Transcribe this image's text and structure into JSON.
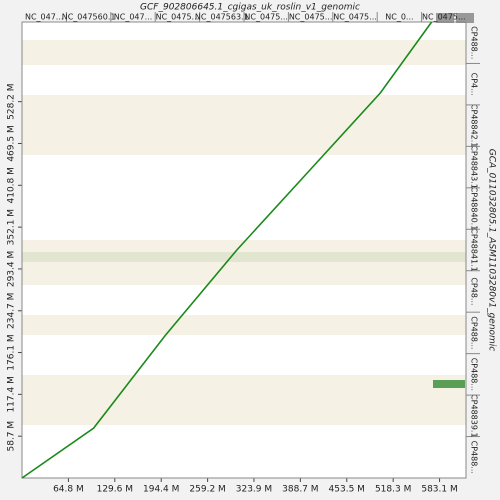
{
  "chart_data": {
    "type": "line",
    "title": "GCF_902806645.1_cgigas_uk_roslin_v1_genomic",
    "y_title": "GCA_011032805.1_ASM1103280v1_genomic",
    "top_labels": [
      "NC_047...",
      "NC_047560.1",
      "NC_047...",
      "NC_0475...",
      "NC_047563.1",
      "NC_0475...",
      "NC_0475...",
      "NC_0475...",
      "NC_0...",
      "NC_0475..."
    ],
    "right_labels": [
      "CP488...",
      "CP48839.1",
      "CP488...",
      "CP488...",
      "CP48...",
      "CP48841.1",
      "CP48840.1",
      "CP48843.1",
      "CP48842.1",
      "CP4...",
      "CP488..."
    ],
    "xlim": [
      0,
      620
    ],
    "ylim": [
      0,
      640
    ],
    "xticks": [
      {
        "value": 64.8,
        "label": "64.8 M"
      },
      {
        "value": 129.6,
        "label": "129.6 M"
      },
      {
        "value": 194.4,
        "label": "194.4 M"
      },
      {
        "value": 259.2,
        "label": "259.2 M"
      },
      {
        "value": 323.9,
        "label": "323.9 M"
      },
      {
        "value": 388.7,
        "label": "388.7 M"
      },
      {
        "value": 453.5,
        "label": "453.5 M"
      },
      {
        "value": 518.3,
        "label": "518.3 M"
      },
      {
        "value": 583.1,
        "label": "583.1 M"
      }
    ],
    "yticks": [
      {
        "value": 58.7,
        "label": "58.7 M"
      },
      {
        "value": 117.4,
        "label": "117.4 M"
      },
      {
        "value": 176.1,
        "label": "176.1 M"
      },
      {
        "value": 234.7,
        "label": "234.7 M"
      },
      {
        "value": 293.4,
        "label": "293.4 M"
      },
      {
        "value": 352.1,
        "label": "352.1 M"
      },
      {
        "value": 410.8,
        "label": "410.8 M"
      },
      {
        "value": 469.5,
        "label": "469.5 M"
      },
      {
        "value": 528.2,
        "label": "528.2 M"
      }
    ],
    "series": [
      {
        "color": "#1a8a1a",
        "x": [
          0,
          100,
          200,
          300,
          400,
          500,
          572
        ],
        "values": [
          0,
          70,
          200,
          320,
          430,
          540,
          640
        ]
      }
    ]
  }
}
